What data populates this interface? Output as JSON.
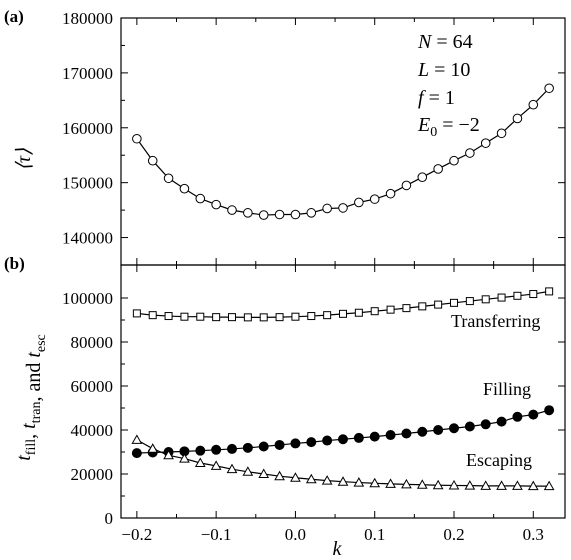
{
  "chart_data": [
    {
      "panel_label": "(a)",
      "type": "line",
      "ylabel": "⟨τ⟩",
      "ylim": [
        135000,
        180000
      ],
      "yticks": [
        140000,
        150000,
        160000,
        170000,
        180000
      ],
      "xlim": [
        -0.22,
        0.34
      ],
      "annotations": [
        "N = 64",
        "L = 10",
        "f = 1",
        "E0 = −2"
      ],
      "series": [
        {
          "marker": "open-circle",
          "x": [
            -0.2,
            -0.18,
            -0.16,
            -0.14,
            -0.12,
            -0.1,
            -0.08,
            -0.06,
            -0.04,
            -0.02,
            0.0,
            0.02,
            0.04,
            0.06,
            0.08,
            0.1,
            0.12,
            0.14,
            0.16,
            0.18,
            0.2,
            0.22,
            0.24,
            0.26,
            0.28,
            0.3,
            0.32
          ],
          "values": [
            158000,
            154000,
            150800,
            148900,
            147100,
            146000,
            145000,
            144500,
            144100,
            144200,
            144200,
            144500,
            145300,
            145400,
            146400,
            147000,
            148000,
            149500,
            151000,
            152500,
            154000,
            155400,
            157200,
            159000,
            161700,
            164200,
            167200
          ]
        }
      ]
    },
    {
      "panel_label": "(b)",
      "type": "line",
      "ylabel": "t_fill, t_tran, and t_esc",
      "xlabel": "k",
      "ylim": [
        0,
        115000
      ],
      "yticks": [
        0,
        20000,
        40000,
        60000,
        80000,
        100000
      ],
      "xlim": [
        -0.22,
        0.34
      ],
      "xticks": [
        -0.2,
        -0.1,
        0.0,
        0.1,
        0.2,
        0.3
      ],
      "series": [
        {
          "name": "Transferring",
          "marker": "open-square",
          "x": [
            -0.2,
            -0.18,
            -0.16,
            -0.14,
            -0.12,
            -0.1,
            -0.08,
            -0.06,
            -0.04,
            -0.02,
            0.0,
            0.02,
            0.04,
            0.06,
            0.08,
            0.1,
            0.12,
            0.14,
            0.16,
            0.18,
            0.2,
            0.22,
            0.24,
            0.26,
            0.28,
            0.3,
            0.32
          ],
          "values": [
            93000,
            92200,
            91800,
            91500,
            91500,
            91300,
            91300,
            91200,
            91200,
            91300,
            91500,
            91800,
            92200,
            92800,
            93300,
            94000,
            94700,
            95400,
            96200,
            97000,
            97800,
            98600,
            99400,
            100200,
            101000,
            101800,
            103000
          ]
        },
        {
          "name": "Filling",
          "marker": "filled-circle",
          "x": [
            -0.2,
            -0.18,
            -0.16,
            -0.14,
            -0.12,
            -0.1,
            -0.08,
            -0.06,
            -0.04,
            -0.02,
            0.0,
            0.02,
            0.04,
            0.06,
            0.08,
            0.1,
            0.12,
            0.14,
            0.16,
            0.18,
            0.2,
            0.22,
            0.24,
            0.26,
            0.28,
            0.3,
            0.32
          ],
          "values": [
            29500,
            29800,
            30000,
            30300,
            30600,
            31000,
            31400,
            31900,
            32500,
            33200,
            33900,
            34500,
            35200,
            35800,
            36400,
            37000,
            37700,
            38400,
            39200,
            40000,
            40800,
            41600,
            42600,
            43800,
            46000,
            47000,
            49000
          ]
        },
        {
          "name": "Escaping",
          "marker": "open-triangle",
          "x": [
            -0.2,
            -0.18,
            -0.16,
            -0.14,
            -0.12,
            -0.1,
            -0.08,
            -0.06,
            -0.04,
            -0.02,
            0.0,
            0.02,
            0.04,
            0.06,
            0.08,
            0.1,
            0.12,
            0.14,
            0.16,
            0.18,
            0.2,
            0.22,
            0.24,
            0.26,
            0.28,
            0.3,
            0.32
          ],
          "values": [
            35500,
            31500,
            28500,
            27000,
            25000,
            23700,
            22200,
            21000,
            20000,
            19000,
            18300,
            17600,
            17000,
            16500,
            16100,
            15800,
            15500,
            15300,
            15100,
            14900,
            14800,
            14700,
            14600,
            14600,
            14600,
            14500,
            14500
          ]
        }
      ]
    }
  ]
}
